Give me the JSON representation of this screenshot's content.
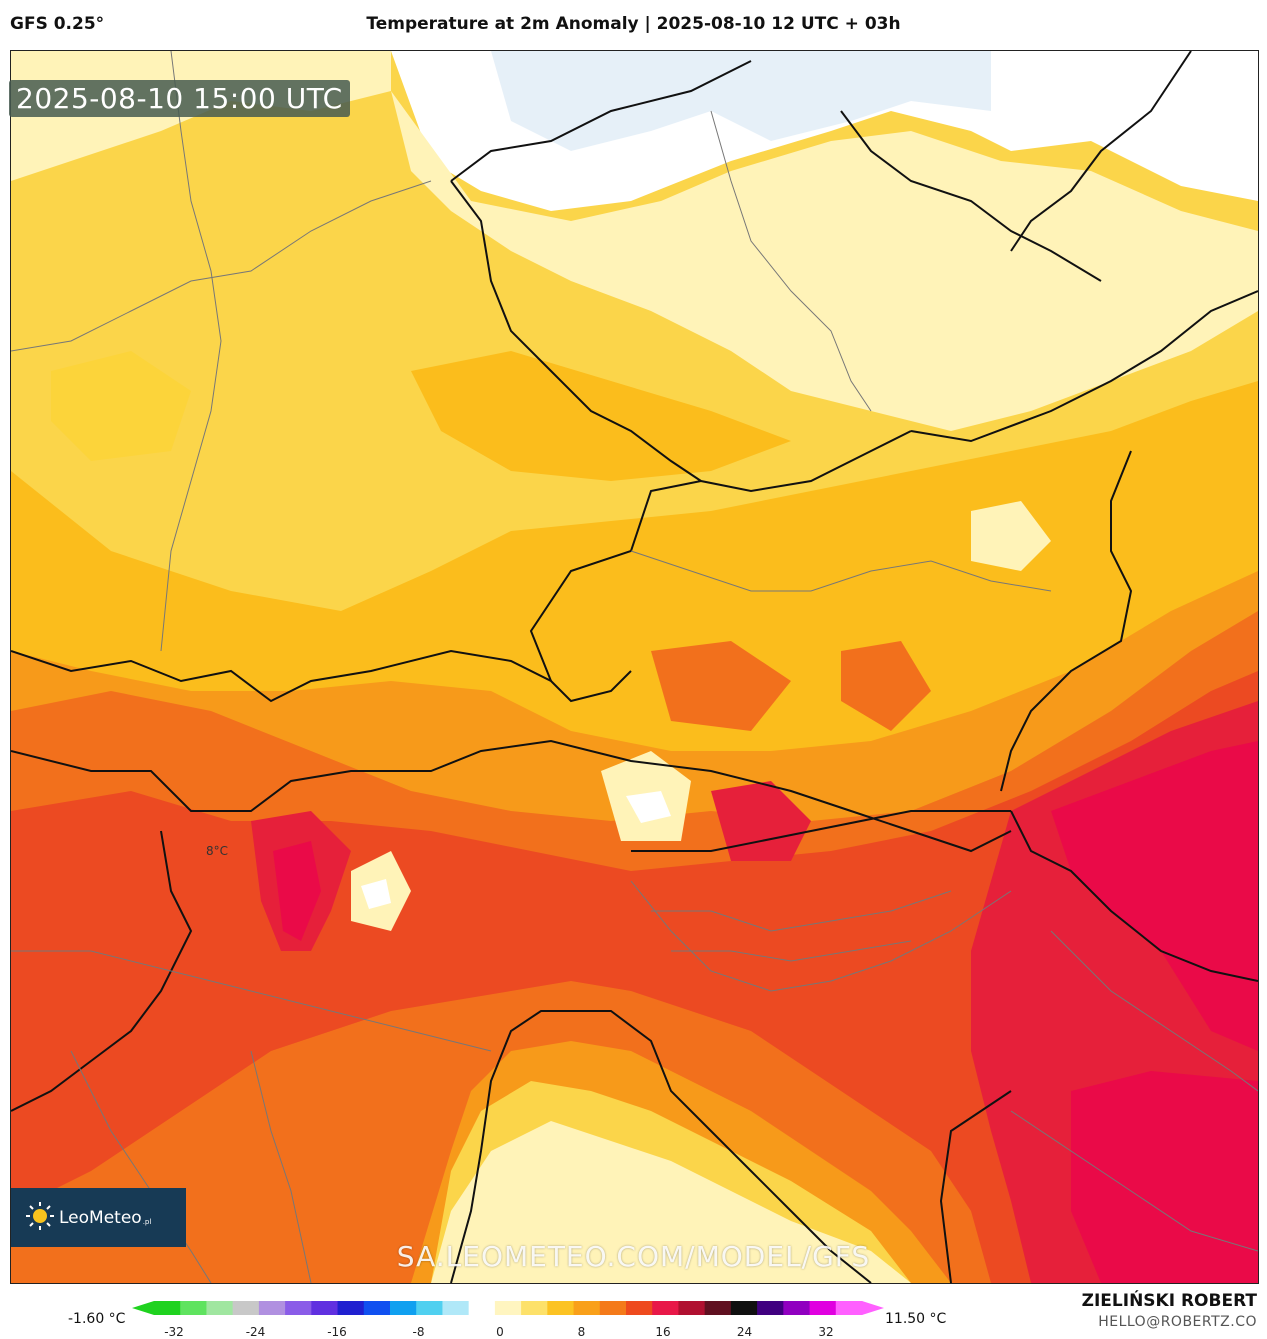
{
  "header": {
    "model": "GFS 0.25°",
    "title": "Temperature at 2m Anomaly | 2025-08-10 12 UTC + 03h"
  },
  "map": {
    "valid_time": "2025-08-10 15:00 UTC",
    "inline_label": "8°C",
    "watermark": "SA.LEOMETEO.COM/MODEL/GFS"
  },
  "logo": {
    "text": "LeoMeteo",
    "suffix": ".pl"
  },
  "colorbar": {
    "min_label": "-1.60 °C",
    "max_label": "11.50 °C",
    "ticks": [
      "-32",
      "-24",
      "-16",
      "-8",
      "0",
      "8",
      "16",
      "24",
      "32"
    ],
    "colors": [
      "#1fd21f",
      "#5fe35f",
      "#a0e6a0",
      "#c8c8c8",
      "#b090e0",
      "#8a5ce8",
      "#6030e0",
      "#2020d0",
      "#1050f0",
      "#10a0f0",
      "#50d0f0",
      "#b0e8f8",
      "#ffffff",
      "#fff5c0",
      "#fde16a",
      "#fcc323",
      "#f9a01a",
      "#f47a1a",
      "#ee4a1e",
      "#e81848",
      "#b01030",
      "#601020",
      "#101010",
      "#400080",
      "#9000c0",
      "#e000e0",
      "#ff60ff"
    ]
  },
  "credits": {
    "author": "ZIELIŃSKI ROBERT",
    "email": "HELLO@ROBERTZ.CO"
  },
  "legend_colors": {
    "white": "#ffffff",
    "light_yellow": "#fff3b8",
    "yellow": "#fcd43a",
    "gold": "#fbbd1c",
    "orange": "#f79a1a",
    "dark_orange": "#f2701c",
    "red_orange": "#ec4a22",
    "red": "#e6203a",
    "crimson": "#ea0a48",
    "light_blue": "#e6f0f8"
  }
}
